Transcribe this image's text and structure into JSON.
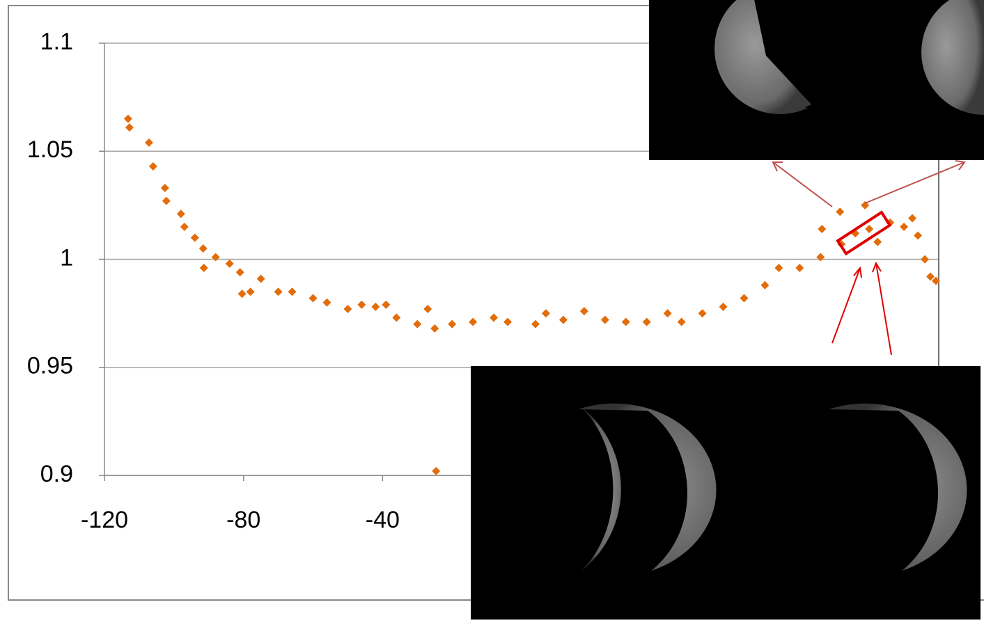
{
  "chart_data": {
    "type": "scatter",
    "x": [
      -113.2,
      -112.8,
      -107.2,
      -106,
      -102.6,
      -102.2,
      -98,
      -97,
      -94,
      -91.6,
      -91.4,
      -88,
      -84,
      -81,
      -80.4,
      -78,
      -75,
      -70,
      -66,
      -60,
      -56,
      -50,
      -46,
      -42,
      -39,
      -36,
      -30,
      -27,
      -25,
      -24.6,
      -20,
      -14,
      -8,
      -4,
      4,
      7,
      12,
      18,
      24,
      30,
      36,
      42,
      46,
      52,
      58,
      64,
      70,
      74,
      80,
      86,
      86.4,
      92,
      91.6,
      96,
      98.8,
      100,
      102.4,
      106,
      110,
      112.4,
      114,
      116,
      117.6,
      119.2
    ],
    "values": [
      1.065,
      1.061,
      1.054,
      1.043,
      1.033,
      1.027,
      1.021,
      1.015,
      1.01,
      1.005,
      0.996,
      1.001,
      0.998,
      0.994,
      0.984,
      0.985,
      0.991,
      0.985,
      0.985,
      0.982,
      0.98,
      0.977,
      0.979,
      0.978,
      0.979,
      0.973,
      0.97,
      0.977,
      0.968,
      0.902,
      0.97,
      0.971,
      0.973,
      0.971,
      0.97,
      0.975,
      0.972,
      0.976,
      0.972,
      0.971,
      0.971,
      0.975,
      0.971,
      0.975,
      0.978,
      0.982,
      0.988,
      0.996,
      0.996,
      1.001,
      1.014,
      1.007,
      1.022,
      1.012,
      1.025,
      1.014,
      1.008,
      1.017,
      1.015,
      1.019,
      1.011,
      1,
      0.992,
      0.99
    ],
    "color": "#e36c0a",
    "xlim": [
      -120,
      120
    ],
    "xticks": [
      -120,
      -80,
      -40
    ],
    "ylim": [
      0.9,
      1.1
    ],
    "yticks": [
      0.9,
      0.95,
      1,
      1.05,
      1.1
    ],
    "grid": true
  }
}
